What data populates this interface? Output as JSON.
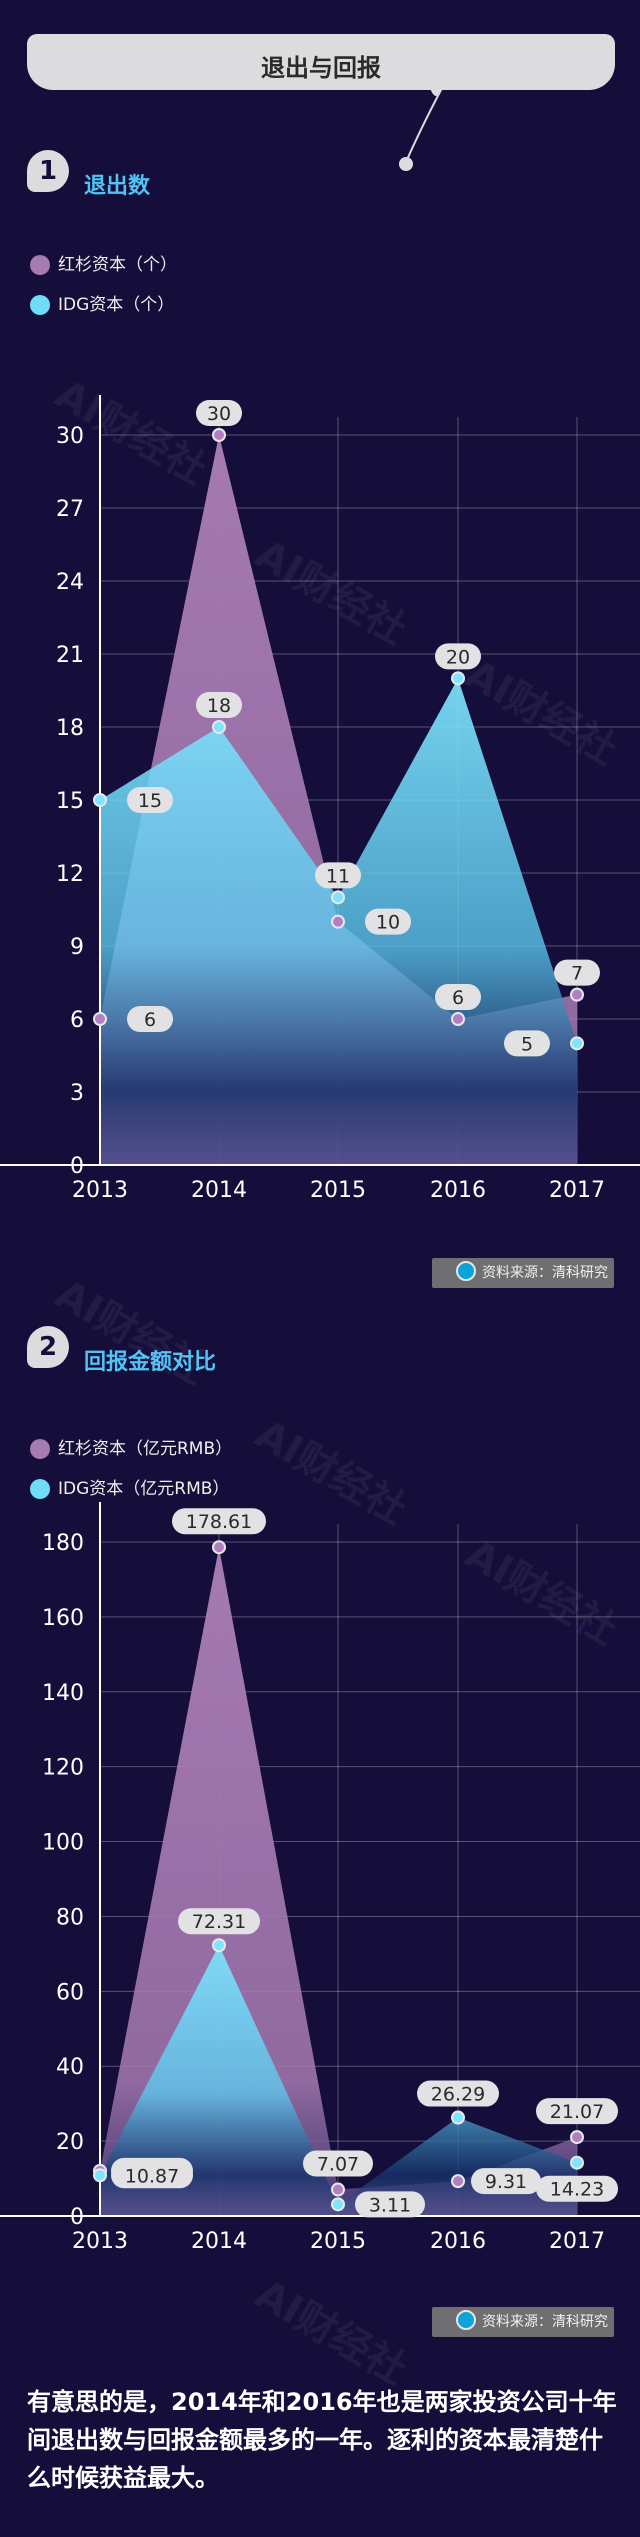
{
  "banner": {
    "title": "退出与回报"
  },
  "section1": {
    "num": "1",
    "title": "退出数"
  },
  "section2": {
    "num": "2",
    "title": "回报金额对比"
  },
  "legend1": [
    {
      "label": "红杉资本（个）",
      "color": "#a67ab2"
    },
    {
      "label": "IDG资本（个）",
      "color": "#6fdcfa"
    }
  ],
  "legend2": [
    {
      "label": "红杉资本（亿元RMB）",
      "color": "#a67ab2"
    },
    {
      "label": "IDG资本（亿元RMB）",
      "color": "#6fdcfa"
    }
  ],
  "source": {
    "label": "资料来源：清科研究"
  },
  "watermark": "AI财经社",
  "paragraph": "有意思的是，2014年和2016年也是两家投资公司十年间退出数与回报金额最多的一年。逐利的资本最清楚什么时候获益最大。",
  "chart_data": [
    {
      "type": "area",
      "categories": [
        "2013",
        "2014",
        "2015",
        "2016",
        "2017"
      ],
      "ylim": [
        0,
        30
      ],
      "yticks": [
        0,
        3,
        6,
        9,
        12,
        15,
        18,
        21,
        24,
        27,
        30
      ],
      "grid": true,
      "series": [
        {
          "name": "红杉资本（个）",
          "color": "#a67ab2",
          "values": [
            6,
            30,
            10,
            6,
            7
          ]
        },
        {
          "name": "IDG资本（个）",
          "color": "#6fdcfa",
          "values": [
            15,
            18,
            11,
            20,
            5
          ]
        }
      ]
    },
    {
      "type": "area",
      "categories": [
        "2013",
        "2014",
        "2015",
        "2016",
        "2017"
      ],
      "ylim": [
        0,
        180
      ],
      "yticks": [
        0,
        20,
        40,
        60,
        80,
        100,
        120,
        140,
        160,
        180
      ],
      "grid": true,
      "series": [
        {
          "name": "红杉资本（亿元RMB）",
          "color": "#a67ab2",
          "values": [
            12.05,
            178.61,
            7.07,
            9.31,
            21.07
          ]
        },
        {
          "name": "IDG资本（亿元RMB）",
          "color": "#6fdcfa",
          "values": [
            10.87,
            72.31,
            3.11,
            26.29,
            14.23
          ]
        }
      ]
    }
  ]
}
